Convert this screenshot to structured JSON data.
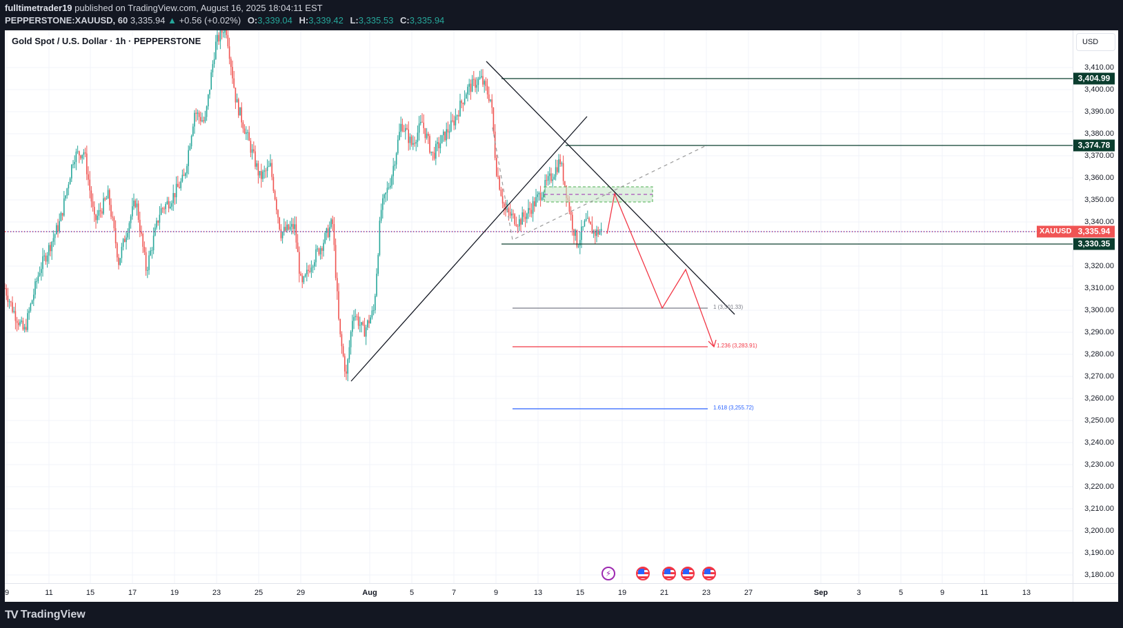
{
  "header": {
    "author": "fulltimetrader19",
    "published_text": " published on TradingView.com, August 16, 2025 18:04:11 EST",
    "symbol": "PEPPERSTONE:XAUUSD, 60",
    "last": "3,335.94",
    "change_arrow": "▲",
    "change": "+0.56 (+0.02%)",
    "o_label": "O:",
    "o": "3,339.04",
    "h_label": "H:",
    "h": "3,339.42",
    "l_label": "L:",
    "l": "3,335.53",
    "c_label": "C:",
    "c": "3,335.94"
  },
  "chart": {
    "title": "Gold Spot / U.S. Dollar · 1h · PEPPERSTONE",
    "currency": "USD",
    "symbol_tag": "XAUUSD",
    "current_price_tag": "3,335.94",
    "level_tags": [
      "3,404.99",
      "3,374.78",
      "3,330.35"
    ],
    "fib_labels": [
      "1 (3,301.33)",
      "1.236 (3,283.91)",
      "1.618 (3,255.72)"
    ],
    "price_ticks": [
      "3,410.00",
      "3,400.00",
      "3,390.00",
      "3,380.00",
      "3,370.00",
      "3,360.00",
      "3,350.00",
      "3,340.00",
      "3,320.00",
      "3,310.00",
      "3,300.00",
      "3,290.00",
      "3,280.00",
      "3,270.00",
      "3,260.00",
      "3,250.00",
      "3,240.00",
      "3,230.00",
      "3,220.00",
      "3,210.00",
      "3,200.00",
      "3,190.00",
      "3,180.00"
    ],
    "time_ticks": [
      "9",
      "11",
      "15",
      "17",
      "19",
      "23",
      "25",
      "29",
      "Aug",
      "5",
      "7",
      "9",
      "13",
      "15",
      "19",
      "21",
      "23",
      "27",
      "Sep",
      "3",
      "5",
      "9",
      "11",
      "13"
    ],
    "events": [
      "lightning-event",
      "us-flag-event",
      "us-flag-event",
      "us-flag-event",
      "us-flag-event"
    ],
    "colors": {
      "up": "#26a69a",
      "down": "#ef5350",
      "level_line": "#0b3d2e",
      "projection": "#f23645",
      "fib_1": "#787b86",
      "fib_1236": "#f23645",
      "fib_1618": "#2962ff",
      "zone_fill": "#c8e6c9",
      "zone_border": "#4caf50"
    }
  },
  "chart_data": {
    "type": "candlestick",
    "title": "Gold Spot / U.S. Dollar · 1h · PEPPERSTONE",
    "symbol": "PEPPERSTONE:XAUUSD",
    "interval": "1h",
    "ylabel": "USD",
    "ylim": [
      3177,
      3422
    ],
    "x_ticks": [
      "Jul 9",
      "11",
      "15",
      "17",
      "19",
      "23",
      "25",
      "29",
      "Aug",
      "5",
      "7",
      "9",
      "13",
      "15",
      "19",
      "21",
      "23",
      "27",
      "Sep",
      "3",
      "5",
      "9",
      "11",
      "13"
    ],
    "approx_swing_points": [
      {
        "date": "Jul 9",
        "price": 3290
      },
      {
        "date": "Jul 14",
        "price": 3375
      },
      {
        "date": "Jul 17",
        "price": 3310
      },
      {
        "date": "Jul 22",
        "price": 3390
      },
      {
        "date": "Jul 23",
        "price": 3435
      },
      {
        "date": "Jul 30",
        "price": 3268
      },
      {
        "date": "Aug 1",
        "price": 3355
      },
      {
        "date": "Aug 8",
        "price": 3409
      },
      {
        "date": "Aug 12",
        "price": 3331
      },
      {
        "date": "Aug 14",
        "price": 3374.78
      },
      {
        "date": "Aug 15",
        "price": 3330.35
      },
      {
        "date": "Aug 15 close",
        "price": 3335.94
      }
    ],
    "horizontal_levels": [
      3404.99,
      3374.78,
      3330.35
    ],
    "fibonacci_extension": [
      {
        "level": 1,
        "price": 3301.33
      },
      {
        "level": 1.236,
        "price": 3283.91
      },
      {
        "level": 1.618,
        "price": 3255.72
      }
    ],
    "supply_zone": [
      3348,
      3355
    ],
    "projection_path": [
      3335,
      3352,
      3301,
      3318,
      3284
    ],
    "last_price": 3335.94,
    "ohlc": {
      "open": 3339.04,
      "high": 3339.42,
      "low": 3335.53,
      "close": 3335.94
    },
    "change": 0.56,
    "change_pct": 0.02
  },
  "footer": {
    "brand": "TradingView"
  }
}
